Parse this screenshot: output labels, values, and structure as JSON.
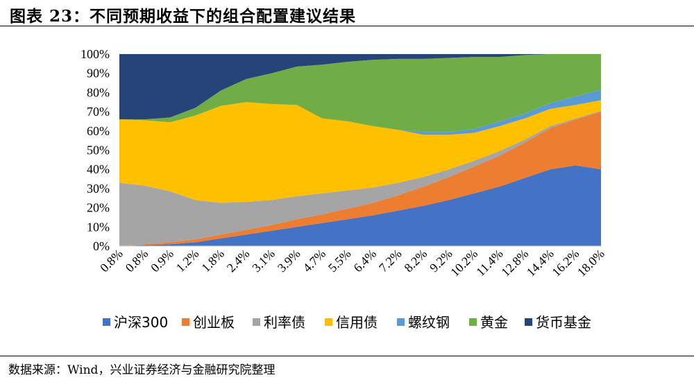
{
  "title": "图表 23：不同预期收益下的组合配置建议结果",
  "source": "数据来源：Wind，兴业证券经济与金融研究院整理",
  "chart_data": {
    "type": "area",
    "stacked": true,
    "normalized": true,
    "categories": [
      "0.8%",
      "0.8%",
      "0.9%",
      "1.2%",
      "1.8%",
      "2.4%",
      "3.1%",
      "3.9%",
      "4.7%",
      "5.5%",
      "6.4%",
      "7.2%",
      "8.2%",
      "9.2%",
      "10.2%",
      "11.4%",
      "12.8%",
      "14.4%",
      "16.2%",
      "18.0%"
    ],
    "y_ticks": [
      "0%",
      "10%",
      "20%",
      "30%",
      "40%",
      "50%",
      "60%",
      "70%",
      "80%",
      "90%",
      "100%"
    ],
    "ylim": [
      0,
      100
    ],
    "legend_position": "bottom",
    "series": [
      {
        "name": "沪深300",
        "color": "#4472C4",
        "values": [
          0,
          0.5,
          1,
          2,
          4,
          6,
          8,
          10,
          12,
          14,
          16,
          18.5,
          21,
          24,
          27.5,
          31,
          35.5,
          40,
          42,
          40
        ]
      },
      {
        "name": "创业板",
        "color": "#ED7D31",
        "values": [
          0,
          0.5,
          1,
          1.5,
          2,
          2.5,
          3,
          4,
          4.5,
          5.5,
          6.5,
          8,
          10,
          12,
          14,
          16,
          18.5,
          21.5,
          24,
          30
        ]
      },
      {
        "name": "利率债",
        "color": "#A5A5A5",
        "values": [
          33,
          30.5,
          26.5,
          20.5,
          16.5,
          14.5,
          13,
          12,
          11,
          9.5,
          8,
          6.5,
          5,
          4,
          3,
          2.5,
          1.5,
          1,
          0.5,
          0.5
        ]
      },
      {
        "name": "信用债",
        "color": "#FFC000",
        "values": [
          33,
          34,
          36,
          44,
          50.5,
          52,
          50,
          47.5,
          39,
          36,
          32,
          27.5,
          22,
          18,
          14.5,
          13,
          11,
          9,
          7,
          5.5
        ]
      },
      {
        "name": "螺纹钢",
        "color": "#5B9BD5",
        "values": [
          0,
          0,
          0,
          0,
          0,
          0,
          0,
          0,
          0,
          0,
          0,
          0,
          1.5,
          1.5,
          2,
          2.5,
          2.5,
          3,
          4.5,
          5.5
        ]
      },
      {
        "name": "黄金",
        "color": "#70AD47",
        "values": [
          0,
          0.5,
          2.5,
          4,
          8,
          12,
          16,
          20,
          28,
          31,
          34.5,
          37,
          38,
          38.5,
          37.5,
          33.5,
          30.5,
          25.5,
          22,
          18.5
        ]
      },
      {
        "name": "货币基金",
        "color": "#264478",
        "values": [
          34,
          34,
          33,
          28,
          19,
          13,
          10,
          6.5,
          5.5,
          4,
          3,
          2.5,
          2.5,
          2,
          1.5,
          1.5,
          0.5,
          0,
          0,
          0
        ]
      }
    ]
  }
}
